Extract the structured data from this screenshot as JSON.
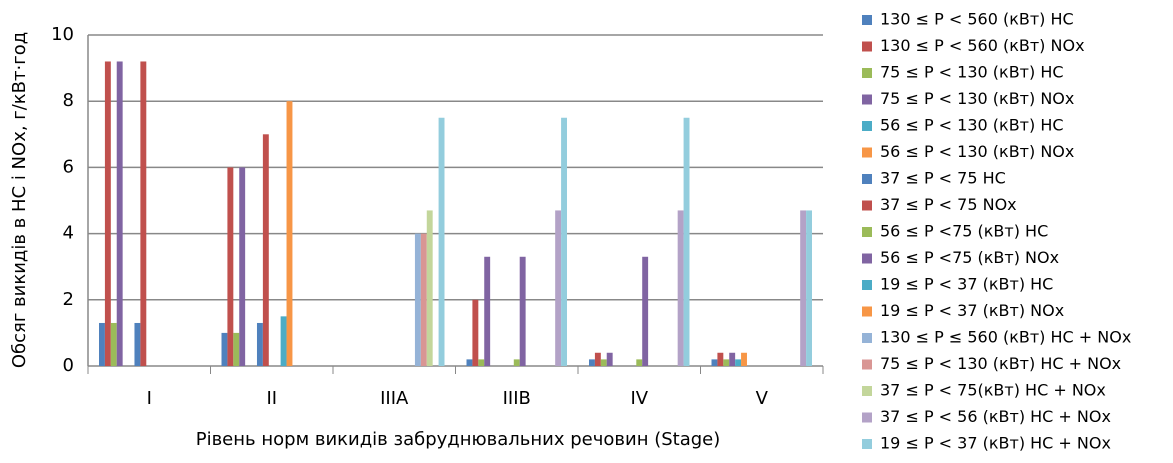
{
  "chart_data": {
    "type": "bar",
    "y_label": "Обсяг викидів в HC і NOx, г/кВт·год",
    "x_label": "Рівень норм викидів забруднювальних речовин (Stage)",
    "categories": [
      "I",
      "II",
      "IIIA",
      "IIIB",
      "IV",
      "V"
    ],
    "ylim": [
      0,
      10
    ],
    "yticks": [
      0,
      2,
      4,
      6,
      8,
      10
    ],
    "grid": true,
    "legend": "right",
    "series": [
      {
        "name": "130 ≤ P < 560  (кВт) HC",
        "color": "#4f81bd",
        "values": [
          1.3,
          1.0,
          0,
          0.2,
          0.2,
          0.2
        ]
      },
      {
        "name": "130 ≤ P < 560  (кВт) NOx",
        "color": "#c0504d",
        "values": [
          9.2,
          6.0,
          0,
          2.0,
          0.4,
          0.4
        ]
      },
      {
        "name": "75 ≤ P < 130  (кВт) HC",
        "color": "#9bbb59",
        "values": [
          1.3,
          1.0,
          0,
          0.2,
          0.2,
          0.2
        ]
      },
      {
        "name": "75 ≤ P < 130  (кВт) NOx",
        "color": "#8064a2",
        "values": [
          9.2,
          6.0,
          0,
          3.3,
          0.4,
          0.4
        ]
      },
      {
        "name": "56 ≤ P < 130 (кВт) HC",
        "color": "#4bacc6",
        "values": [
          0,
          0,
          0,
          0,
          0,
          0.2
        ]
      },
      {
        "name": "56 ≤ P < 130 (кВт) NOx",
        "color": "#f79646",
        "values": [
          0,
          0,
          0,
          0,
          0,
          0.4
        ]
      },
      {
        "name": " 37 ≤  P < 75 HC",
        "color": "#4f81bd",
        "values": [
          1.3,
          1.3,
          0,
          0,
          0,
          0
        ]
      },
      {
        "name": " 37 ≤  P < 75 NOx",
        "color": "#c0504d",
        "values": [
          9.2,
          7.0,
          0,
          0,
          0,
          0
        ]
      },
      {
        "name": "56 ≤ P <75 (кВт) HC",
        "color": "#9bbb59",
        "values": [
          0,
          0,
          0,
          0.2,
          0.2,
          0
        ]
      },
      {
        "name": "56 ≤ P <75 (кВт) NOx",
        "color": "#8064a2",
        "values": [
          0,
          0,
          0,
          3.3,
          3.3,
          0
        ]
      },
      {
        "name": "19 ≤ P < 37  (кВт) HC",
        "color": "#4bacc6",
        "values": [
          0,
          1.5,
          0,
          0,
          0,
          0
        ]
      },
      {
        "name": "19 ≤ P < 37  (кВт) NOx",
        "color": "#f79646",
        "values": [
          0,
          8.0,
          0,
          0,
          0,
          0
        ]
      },
      {
        "name": "130 ≤ P ≤ 560 (кВт)   HC + NOx",
        "color": "#95b3d7",
        "values": [
          0,
          0,
          4.0,
          0,
          0,
          0
        ]
      },
      {
        "name": "75 ≤ P < 130 (кВт) HC + NOx",
        "color": "#d99694",
        "values": [
          0,
          0,
          4.0,
          0,
          0,
          0
        ]
      },
      {
        "name": "37 ≤ P < 75(кВт) HC + NOx",
        "color": "#c3d69b",
        "values": [
          0,
          0,
          4.7,
          0,
          0,
          0
        ]
      },
      {
        "name": "37 ≤ P < 56 (кВт) HC + NOx",
        "color": "#b3a2c7",
        "values": [
          0,
          0,
          0,
          4.7,
          4.7,
          4.7
        ]
      },
      {
        "name": "19 ≤ P < 37 (кВт) HC + NOx",
        "color": "#93cddd",
        "values": [
          0,
          0,
          7.5,
          7.5,
          7.5,
          4.7
        ]
      }
    ]
  }
}
